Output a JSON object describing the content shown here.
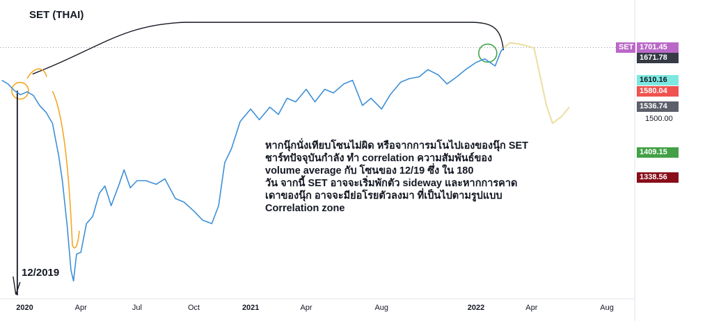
{
  "chart_data": {
    "type": "line",
    "title": "SET (THAI)",
    "series": [
      {
        "name": "SET",
        "x": [
          "2019-11-25",
          "2019-12-05",
          "2019-12-15",
          "2019-12-25",
          "2020-01-05",
          "2020-01-15",
          "2020-01-25",
          "2020-02-05",
          "2020-02-15",
          "2020-02-25",
          "2020-03-02",
          "2020-03-10",
          "2020-03-16",
          "2020-03-20",
          "2020-03-25",
          "2020-04-01",
          "2020-04-10",
          "2020-04-20",
          "2020-05-01",
          "2020-05-10",
          "2020-05-20",
          "2020-06-01",
          "2020-06-10",
          "2020-06-20",
          "2020-07-01",
          "2020-07-15",
          "2020-08-01",
          "2020-08-15",
          "2020-09-01",
          "2020-09-15",
          "2020-10-01",
          "2020-10-15",
          "2020-10-30",
          "2020-11-10",
          "2020-11-20",
          "2020-12-01",
          "2020-12-15",
          "2021-01-01",
          "2021-01-15",
          "2021-02-01",
          "2021-02-15",
          "2021-03-01",
          "2021-03-15",
          "2021-04-01",
          "2021-04-15",
          "2021-05-01",
          "2021-05-15",
          "2021-06-01",
          "2021-06-15",
          "2021-07-01",
          "2021-07-15",
          "2021-08-01",
          "2021-08-15",
          "2021-09-01",
          "2021-09-15",
          "2021-10-01",
          "2021-10-15",
          "2021-11-01",
          "2021-11-15",
          "2021-12-01",
          "2021-12-15",
          "2022-01-01",
          "2022-01-15",
          "2022-02-01",
          "2022-02-10",
          "2022-02-15"
        ],
        "values": [
          1610,
          1600,
          1582,
          1570,
          1578,
          1568,
          1540,
          1520,
          1490,
          1400,
          1330,
          1200,
          1080,
          1050,
          1125,
          1130,
          1210,
          1230,
          1295,
          1315,
          1260,
          1315,
          1360,
          1310,
          1330,
          1330,
          1320,
          1335,
          1280,
          1270,
          1245,
          1220,
          1210,
          1260,
          1380,
          1420,
          1495,
          1530,
          1500,
          1535,
          1515,
          1560,
          1550,
          1585,
          1550,
          1585,
          1575,
          1600,
          1610,
          1540,
          1560,
          1530,
          1570,
          1605,
          1615,
          1620,
          1640,
          1625,
          1600,
          1620,
          1640,
          1660,
          1670,
          1650,
          1690,
          1701.45
        ]
      }
    ],
    "projection": {
      "x": [
        "2022-02-15",
        "2022-02-25",
        "2022-03-10",
        "2022-03-25",
        "2022-04-05",
        "2022-04-15",
        "2022-04-25",
        "2022-05-05",
        "2022-05-20",
        "2022-06-01"
      ],
      "values": [
        1701,
        1715,
        1712,
        1706,
        1700,
        1620,
        1540,
        1490,
        1510,
        1535
      ]
    },
    "xlim": [
      "2019-11-22",
      "2022-09-15"
    ],
    "ylim": [
      1010,
      1780
    ],
    "x_tick_labels": [
      "2020",
      "Apr",
      "Jul",
      "Oct",
      "2021",
      "Apr",
      "Aug",
      "2022",
      "Apr",
      "Aug"
    ],
    "x_tick_dates": [
      "2020-01-01",
      "2020-04-01",
      "2020-07-01",
      "2020-10-01",
      "2021-01-01",
      "2021-04-01",
      "2021-08-01",
      "2022-01-01",
      "2022-04-01",
      "2022-08-01"
    ],
    "price_scale": [
      {
        "label": "SET",
        "value": "1701.45",
        "price": 1701.45,
        "bg": "#ba68c8",
        "fg": "#ffffff"
      },
      {
        "label": "",
        "value": "1671.78",
        "price": 1671.78,
        "bg": "#363a45",
        "fg": "#ffffff"
      },
      {
        "label": "",
        "value": "1610.16",
        "price": 1610.16,
        "bg": "#7de8e0",
        "fg": "#131722"
      },
      {
        "label": "",
        "value": "1580.04",
        "price": 1580.04,
        "bg": "#ef5350",
        "fg": "#ffffff"
      },
      {
        "label": "",
        "value": "1536.74",
        "price": 1536.74,
        "bg": "#5d606b",
        "fg": "#ffffff"
      },
      {
        "label": "",
        "value": "1500.00",
        "price": 1500.0,
        "bg": "",
        "fg": "#131722"
      },
      {
        "label": "",
        "value": "1409.15",
        "price": 1409.15,
        "bg": "#43a047",
        "fg": "#ffffff"
      },
      {
        "label": "",
        "value": "1338.56",
        "price": 1338.56,
        "bg": "#880e1a",
        "fg": "#ffffff"
      }
    ],
    "colors": {
      "line": "#3d8fd6",
      "orange": "#f5a623",
      "projection": "#ede0a8",
      "circle_green": "#3fa64a",
      "arc": "#131722",
      "dotted": "#9598a1"
    },
    "annotation_lines": [
      "หากนุ๊กนั่งเทียบโซนไม่ผิด หรือจากการมโนไปเองของนุ๊ก SET",
      "ชาร์ทปัจจุบันกำลัง ทำ correlation ความสัมพันธ์ของ",
      "volume    average   กับ โซนของ 12/19 ซึ่ง ใน 180",
      "วัน จากนี้ SET อาจจะเริ่มพักตัว sideway และหากการคาด",
      "เดาของนุ๊ก อาจจะมีย่อโรยตัวลงมา ที่เป็นไปตามรูปแบบ",
      "Correlation zone"
    ],
    "date_marker": "12/2019"
  }
}
